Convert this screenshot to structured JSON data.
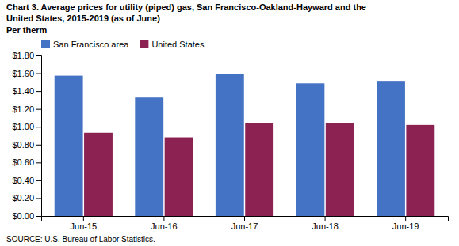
{
  "chart_data": {
    "type": "bar",
    "title": [
      "Chart 3. Average prices for utility (piped) gas, San Francisco-Oakland-Hayward and the",
      "United States, 2015-2019  (as of June)"
    ],
    "ylabel": "Per therm",
    "annotations": [
      {
        "text": "SOURCE: U.S. Bureau of Labor Statistics."
      }
    ],
    "categories": [
      "Jun-15",
      "Jun-16",
      "Jun-17",
      "Jun-18",
      "Jun-19"
    ],
    "series": [
      {
        "name": "San Francisco area",
        "color": "#4472C4",
        "values": [
          1.573,
          1.328,
          1.594,
          1.487,
          1.506
        ]
      },
      {
        "name": "United States",
        "color": "#8B2252",
        "values": [
          0.933,
          0.882,
          1.038,
          1.038,
          1.021
        ]
      }
    ],
    "ylim": [
      0,
      1.8
    ],
    "yticks": [
      {
        "value": 0.0,
        "label": "$0.00"
      },
      {
        "value": 0.2,
        "label": "$0.20"
      },
      {
        "value": 0.4,
        "label": "$0.40"
      },
      {
        "value": 0.6,
        "label": "$0.60"
      },
      {
        "value": 0.8,
        "label": "$0.80"
      },
      {
        "value": 1.0,
        "label": "$1.00"
      },
      {
        "value": 1.2,
        "label": "$1.20"
      },
      {
        "value": 1.4,
        "label": "$1.40"
      },
      {
        "value": 1.6,
        "label": "$1.60"
      },
      {
        "value": 1.8,
        "label": "$1.80"
      }
    ],
    "grid": false,
    "legend": "top-left"
  }
}
